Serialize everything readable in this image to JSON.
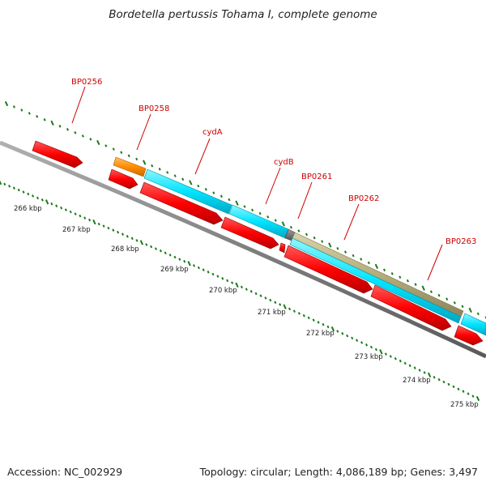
{
  "title": "Bordetella pertussis Tohama I, complete genome",
  "footer": {
    "accession_text": "Accession: NC_002929",
    "summary_text": "Topology: circular; Length: 4,086,189 bp; Genes: 3,497"
  },
  "colors": {
    "cds_forward": "#ff0000",
    "cds_reverse": "#ff0000",
    "cds_cyan": "#00e5ff",
    "cds_orange": "#ff8c00",
    "cds_khaki": "#b5ad7a",
    "backbone": "#7f7f7f",
    "tick_green": "#1a7a1a",
    "label_red": "#cc0000"
  },
  "scale": {
    "unit": "kbp",
    "labels": [
      "266 kbp",
      "267 kbp",
      "268 kbp",
      "269 kbp",
      "270 kbp",
      "271 kbp",
      "272 kbp",
      "273 kbp",
      "274 kbp",
      "275 kbp"
    ]
  },
  "genes": [
    {
      "name": "BP0256",
      "strand": "forward",
      "color": "red"
    },
    {
      "name": "BP0258",
      "strand": "forward",
      "color": "orange"
    },
    {
      "name": "cydA",
      "strand": "forward",
      "color": "cyan"
    },
    {
      "name": "cydB",
      "strand": "forward",
      "color": "cyan"
    },
    {
      "name": "BP0261",
      "strand": "forward",
      "color": "grey"
    },
    {
      "name": "BP0262",
      "strand": "forward",
      "color": "khaki"
    },
    {
      "name": "BP0263",
      "strand": "forward",
      "color": "cyan"
    }
  ]
}
